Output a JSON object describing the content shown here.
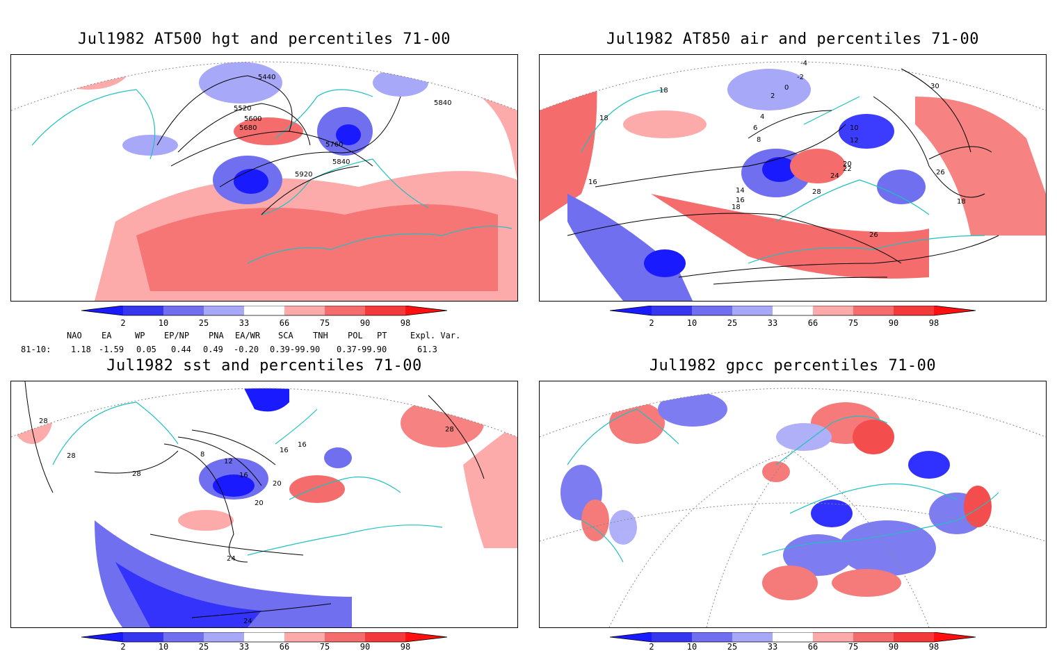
{
  "panels": [
    {
      "title": "Jul1982 AT500 hgt and percentiles 71-00",
      "contour_labels": [
        "5440",
        "5520",
        "5600",
        "5680",
        "5760",
        "5840",
        "5920",
        "5840"
      ]
    },
    {
      "title": "Jul1982 AT850 air and percentiles 71-00",
      "contour_labels": [
        "-4",
        "-2",
        "0",
        "2",
        "4",
        "6",
        "8",
        "10",
        "12",
        "14",
        "16",
        "18",
        "20",
        "22",
        "24",
        "26",
        "28",
        "30",
        "26",
        "18",
        "18",
        "16",
        "18"
      ]
    },
    {
      "title": "Jul1982 sst and percentiles 71-00",
      "contour_labels": [
        "28",
        "28",
        "28",
        "28",
        "8",
        "12",
        "16",
        "20",
        "24",
        "24",
        "16",
        "16",
        "20"
      ]
    },
    {
      "title": "Jul1982 gpcc percentiles 71-00",
      "contour_labels": []
    }
  ],
  "colorbar": {
    "labels": [
      "2",
      "10",
      "25",
      "33",
      "66",
      "75",
      "90",
      "98"
    ],
    "colors": [
      "#1a1aff",
      "#3636ee",
      "#6f6ff0",
      "#a8a8f8",
      "#ffffff",
      "#fcaaaa",
      "#f56c6c",
      "#f33a3a",
      "#ff1010"
    ]
  },
  "teleconnections": {
    "headers": [
      "NAO",
      "EA",
      "WP",
      "EP/NP",
      "PNA",
      "EA/WR",
      "SCA",
      "TNH",
      "POL",
      "PT",
      "Expl. Var."
    ],
    "row_label": "81-10:",
    "values": [
      "1.18",
      "-1.59",
      "0.05",
      "0.44",
      "0.49",
      "-0.20",
      "0.39-99.90",
      "0.37-99.90",
      "61.3"
    ]
  },
  "map_colors": {
    "coast": "#20c0c0",
    "grid": "#888888",
    "contour": "#000000"
  }
}
